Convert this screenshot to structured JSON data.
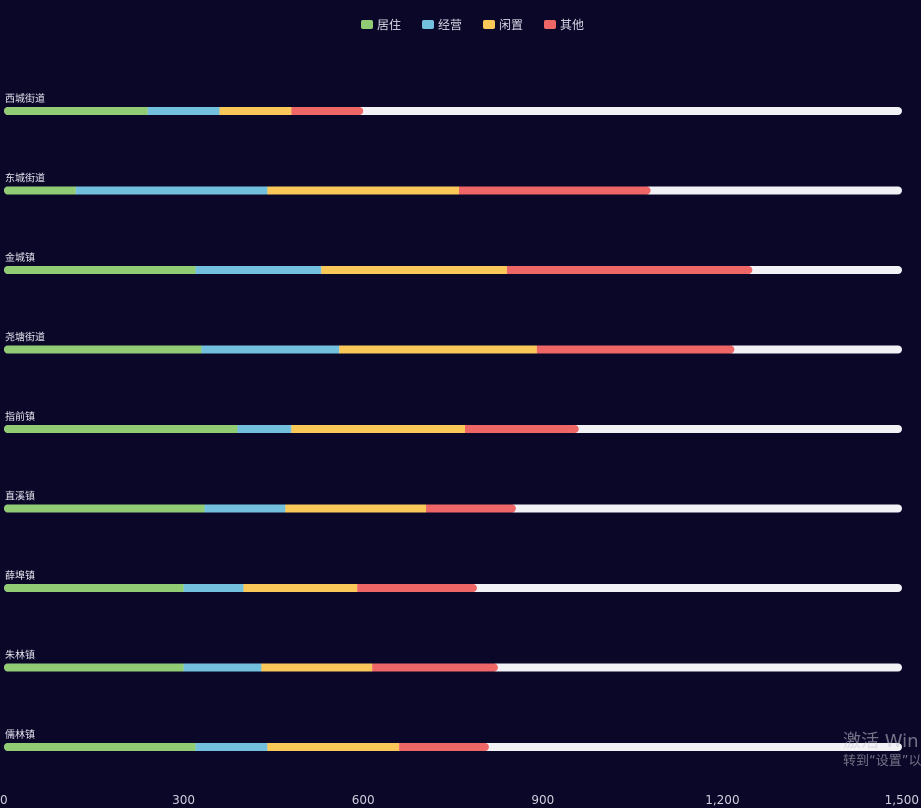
{
  "chart_data": {
    "type": "bar",
    "orientation": "horizontal",
    "stacked": true,
    "legend_position": "top-center",
    "categories": [
      "西城街道",
      "东城街道",
      "金城镇",
      "尧塘街道",
      "指前镇",
      "直溪镇",
      "薛埠镇",
      "朱林镇",
      "儒林镇"
    ],
    "series": [
      {
        "name": "居住",
        "color": "#91cc75",
        "values": [
          240,
          120,
          320,
          330,
          390,
          335,
          300,
          300,
          320
        ]
      },
      {
        "name": "经营",
        "color": "#73c0de",
        "values": [
          120,
          320,
          210,
          230,
          90,
          135,
          100,
          130,
          120
        ]
      },
      {
        "name": "闲置",
        "color": "#fac858",
        "values": [
          120,
          320,
          310,
          330,
          290,
          235,
          190,
          185,
          220
        ]
      },
      {
        "name": "其他",
        "color": "#ee6666",
        "values": [
          120,
          320,
          410,
          330,
          190,
          150,
          200,
          210,
          150
        ]
      }
    ],
    "background_bar": {
      "value": 1500,
      "color": "#f2f1f6"
    },
    "xlim": [
      0,
      1500
    ],
    "xticks": [
      "0",
      "300",
      "600",
      "900",
      "1,200",
      "1,500"
    ],
    "grid": false
  },
  "watermark": {
    "line1": "激活 Win",
    "line2": "转到“设置”以"
  }
}
